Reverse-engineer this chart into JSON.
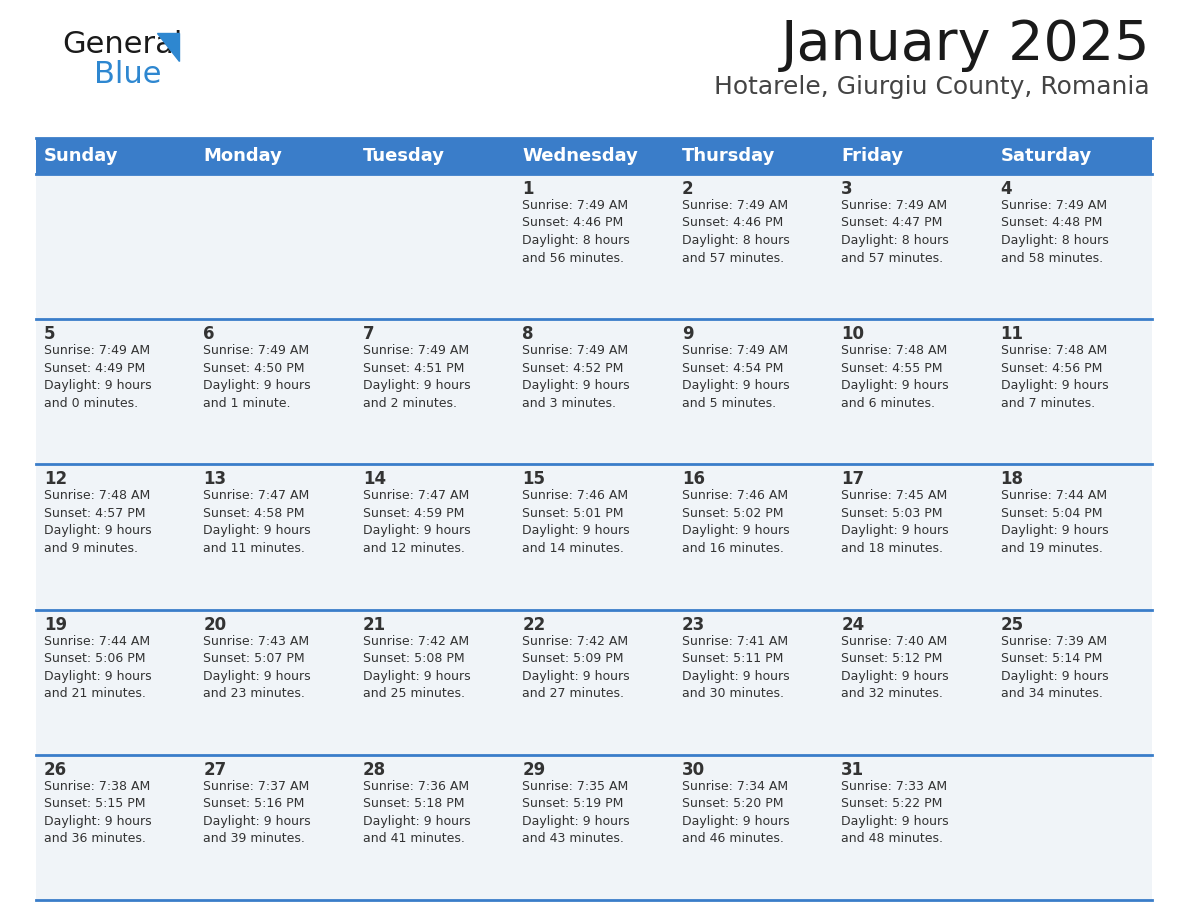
{
  "title": "January 2025",
  "subtitle": "Hotarele, Giurgiu County, Romania",
  "header_bg": "#3A7DC9",
  "header_text_color": "#FFFFFF",
  "cell_bg": "#F0F4F8",
  "divider_color": "#3A7DC9",
  "text_color": "#333333",
  "days_of_week": [
    "Sunday",
    "Monday",
    "Tuesday",
    "Wednesday",
    "Thursday",
    "Friday",
    "Saturday"
  ],
  "calendar": [
    [
      {
        "day": "",
        "info": ""
      },
      {
        "day": "",
        "info": ""
      },
      {
        "day": "",
        "info": ""
      },
      {
        "day": "1",
        "info": "Sunrise: 7:49 AM\nSunset: 4:46 PM\nDaylight: 8 hours\nand 56 minutes."
      },
      {
        "day": "2",
        "info": "Sunrise: 7:49 AM\nSunset: 4:46 PM\nDaylight: 8 hours\nand 57 minutes."
      },
      {
        "day": "3",
        "info": "Sunrise: 7:49 AM\nSunset: 4:47 PM\nDaylight: 8 hours\nand 57 minutes."
      },
      {
        "day": "4",
        "info": "Sunrise: 7:49 AM\nSunset: 4:48 PM\nDaylight: 8 hours\nand 58 minutes."
      }
    ],
    [
      {
        "day": "5",
        "info": "Sunrise: 7:49 AM\nSunset: 4:49 PM\nDaylight: 9 hours\nand 0 minutes."
      },
      {
        "day": "6",
        "info": "Sunrise: 7:49 AM\nSunset: 4:50 PM\nDaylight: 9 hours\nand 1 minute."
      },
      {
        "day": "7",
        "info": "Sunrise: 7:49 AM\nSunset: 4:51 PM\nDaylight: 9 hours\nand 2 minutes."
      },
      {
        "day": "8",
        "info": "Sunrise: 7:49 AM\nSunset: 4:52 PM\nDaylight: 9 hours\nand 3 minutes."
      },
      {
        "day": "9",
        "info": "Sunrise: 7:49 AM\nSunset: 4:54 PM\nDaylight: 9 hours\nand 5 minutes."
      },
      {
        "day": "10",
        "info": "Sunrise: 7:48 AM\nSunset: 4:55 PM\nDaylight: 9 hours\nand 6 minutes."
      },
      {
        "day": "11",
        "info": "Sunrise: 7:48 AM\nSunset: 4:56 PM\nDaylight: 9 hours\nand 7 minutes."
      }
    ],
    [
      {
        "day": "12",
        "info": "Sunrise: 7:48 AM\nSunset: 4:57 PM\nDaylight: 9 hours\nand 9 minutes."
      },
      {
        "day": "13",
        "info": "Sunrise: 7:47 AM\nSunset: 4:58 PM\nDaylight: 9 hours\nand 11 minutes."
      },
      {
        "day": "14",
        "info": "Sunrise: 7:47 AM\nSunset: 4:59 PM\nDaylight: 9 hours\nand 12 minutes."
      },
      {
        "day": "15",
        "info": "Sunrise: 7:46 AM\nSunset: 5:01 PM\nDaylight: 9 hours\nand 14 minutes."
      },
      {
        "day": "16",
        "info": "Sunrise: 7:46 AM\nSunset: 5:02 PM\nDaylight: 9 hours\nand 16 minutes."
      },
      {
        "day": "17",
        "info": "Sunrise: 7:45 AM\nSunset: 5:03 PM\nDaylight: 9 hours\nand 18 minutes."
      },
      {
        "day": "18",
        "info": "Sunrise: 7:44 AM\nSunset: 5:04 PM\nDaylight: 9 hours\nand 19 minutes."
      }
    ],
    [
      {
        "day": "19",
        "info": "Sunrise: 7:44 AM\nSunset: 5:06 PM\nDaylight: 9 hours\nand 21 minutes."
      },
      {
        "day": "20",
        "info": "Sunrise: 7:43 AM\nSunset: 5:07 PM\nDaylight: 9 hours\nand 23 minutes."
      },
      {
        "day": "21",
        "info": "Sunrise: 7:42 AM\nSunset: 5:08 PM\nDaylight: 9 hours\nand 25 minutes."
      },
      {
        "day": "22",
        "info": "Sunrise: 7:42 AM\nSunset: 5:09 PM\nDaylight: 9 hours\nand 27 minutes."
      },
      {
        "day": "23",
        "info": "Sunrise: 7:41 AM\nSunset: 5:11 PM\nDaylight: 9 hours\nand 30 minutes."
      },
      {
        "day": "24",
        "info": "Sunrise: 7:40 AM\nSunset: 5:12 PM\nDaylight: 9 hours\nand 32 minutes."
      },
      {
        "day": "25",
        "info": "Sunrise: 7:39 AM\nSunset: 5:14 PM\nDaylight: 9 hours\nand 34 minutes."
      }
    ],
    [
      {
        "day": "26",
        "info": "Sunrise: 7:38 AM\nSunset: 5:15 PM\nDaylight: 9 hours\nand 36 minutes."
      },
      {
        "day": "27",
        "info": "Sunrise: 7:37 AM\nSunset: 5:16 PM\nDaylight: 9 hours\nand 39 minutes."
      },
      {
        "day": "28",
        "info": "Sunrise: 7:36 AM\nSunset: 5:18 PM\nDaylight: 9 hours\nand 41 minutes."
      },
      {
        "day": "29",
        "info": "Sunrise: 7:35 AM\nSunset: 5:19 PM\nDaylight: 9 hours\nand 43 minutes."
      },
      {
        "day": "30",
        "info": "Sunrise: 7:34 AM\nSunset: 5:20 PM\nDaylight: 9 hours\nand 46 minutes."
      },
      {
        "day": "31",
        "info": "Sunrise: 7:33 AM\nSunset: 5:22 PM\nDaylight: 9 hours\nand 48 minutes."
      },
      {
        "day": "",
        "info": ""
      }
    ]
  ],
  "logo_color_general": "#1a1a1a",
  "logo_color_blue": "#2E87D0",
  "logo_triangle_color": "#2E87D0",
  "title_fontsize": 40,
  "subtitle_fontsize": 18,
  "header_fontsize": 13,
  "day_num_fontsize": 12,
  "info_fontsize": 9
}
